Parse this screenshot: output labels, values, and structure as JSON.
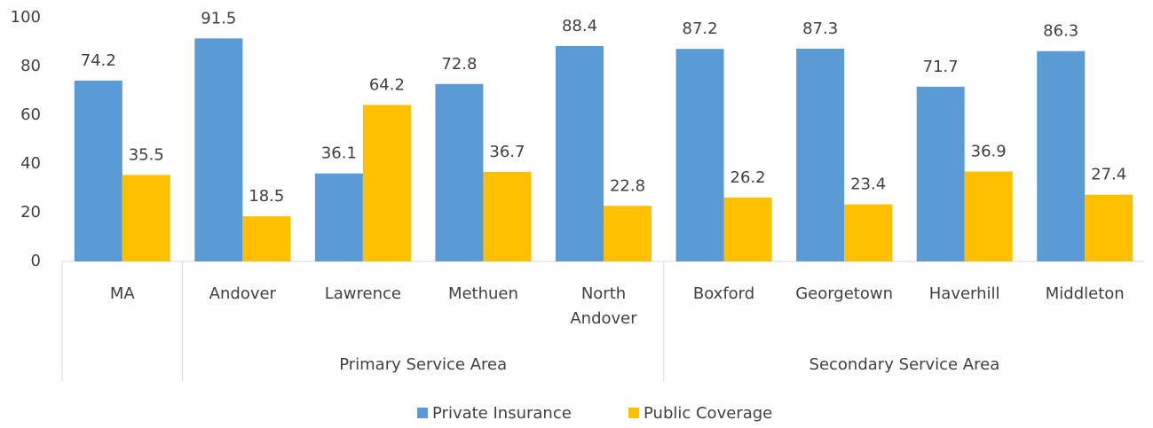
{
  "chart_data": {
    "type": "bar",
    "groups": [
      {
        "label": null,
        "categories": [
          "MA"
        ]
      },
      {
        "label": "Primary Service Area",
        "categories": [
          "Andover",
          "Lawrence",
          "Methuen",
          "North Andover"
        ]
      },
      {
        "label": "Secondary Service Area",
        "categories": [
          "Boxford",
          "Georgetown",
          "Haverhill",
          "Middleton"
        ]
      }
    ],
    "series": [
      {
        "name": "Private Insurance",
        "color": "#5b9bd5",
        "values": [
          74.2,
          91.5,
          36.1,
          72.8,
          88.4,
          87.2,
          87.3,
          71.7,
          86.3
        ]
      },
      {
        "name": "Public Coverage",
        "color": "#ffc000",
        "values": [
          35.5,
          18.5,
          64.2,
          36.7,
          22.8,
          26.2,
          23.4,
          36.9,
          27.4
        ]
      }
    ],
    "ylim": [
      0,
      100
    ],
    "yticks": [
      0,
      20,
      40,
      60,
      80,
      100
    ],
    "grid": false,
    "legend": "bottom"
  }
}
